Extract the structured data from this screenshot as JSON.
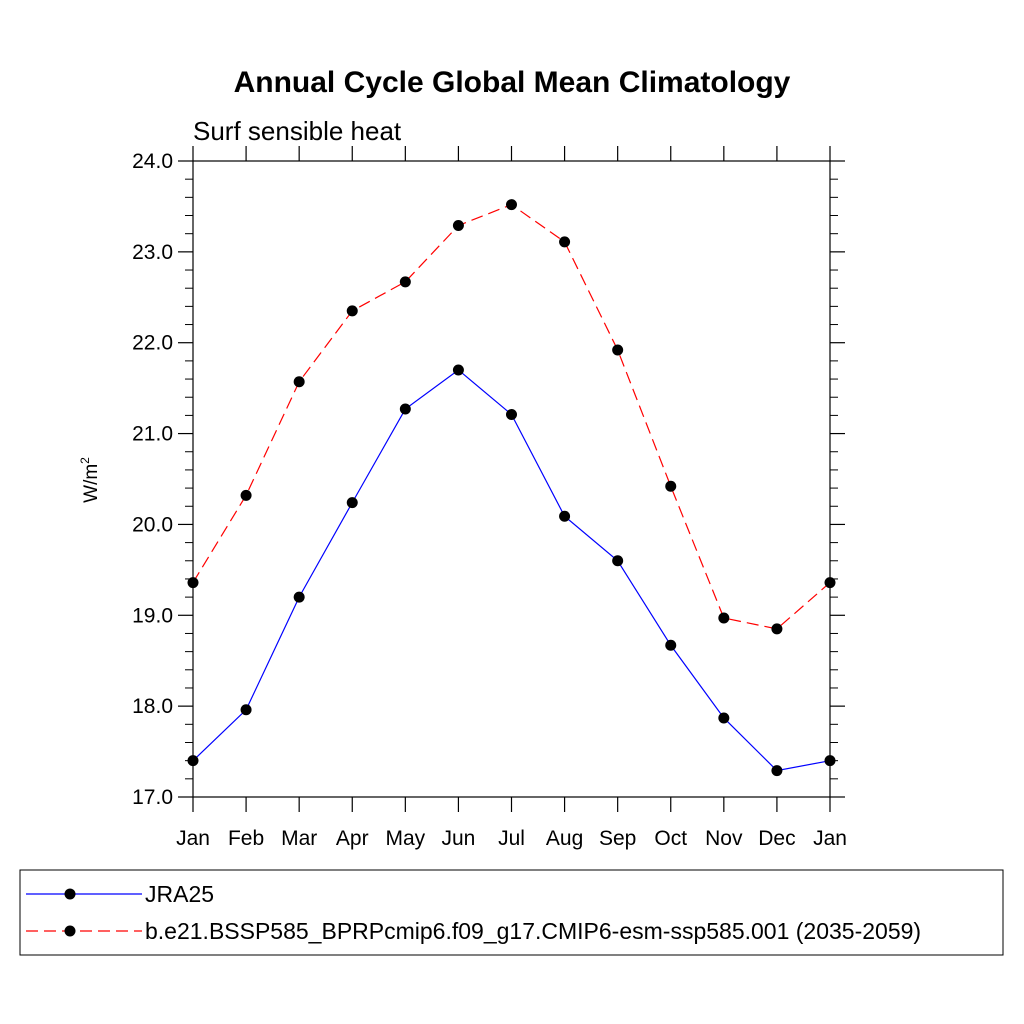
{
  "chart_data": {
    "type": "line",
    "title": "Annual Cycle Global Mean Climatology",
    "subtitle": "Surf sensible heat",
    "ylabel": "W/m",
    "ylabel_superscript": "2",
    "xlabel": "",
    "categories": [
      "Jan",
      "Feb",
      "Mar",
      "Apr",
      "May",
      "Jun",
      "Jul",
      "Aug",
      "Sep",
      "Oct",
      "Nov",
      "Dec",
      "Jan"
    ],
    "ylim": [
      17.0,
      24.0
    ],
    "yticks": [
      "17.0",
      "18.0",
      "19.0",
      "20.0",
      "21.0",
      "22.0",
      "23.0",
      "24.0"
    ],
    "grid": false,
    "legend_position": "bottom",
    "series": [
      {
        "name": "JRA25",
        "color": "#0000ff",
        "dash": "solid",
        "values": [
          17.4,
          17.96,
          19.2,
          20.24,
          21.27,
          21.7,
          21.21,
          20.09,
          19.6,
          18.67,
          17.87,
          17.29,
          17.4
        ]
      },
      {
        "name": "b.e21.BSSP585_BPRPcmip6.f09_g17.CMIP6-esm-ssp585.001 (2035-2059)",
        "color": "#ff0000",
        "dash": "dashed",
        "values": [
          19.36,
          20.32,
          21.57,
          22.35,
          22.67,
          23.29,
          23.52,
          23.11,
          21.92,
          20.42,
          18.97,
          18.85,
          19.36
        ]
      }
    ]
  }
}
